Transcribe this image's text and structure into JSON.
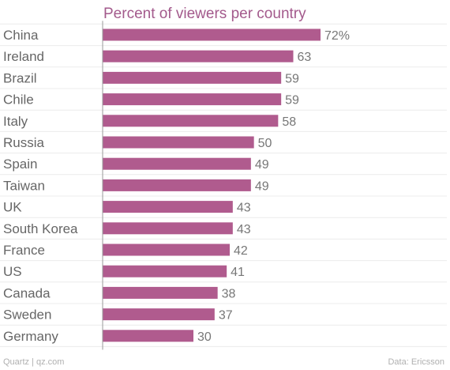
{
  "chart_data": {
    "type": "bar",
    "orientation": "horizontal",
    "subtitle": "Percent of viewers per country",
    "categories": [
      "China",
      "Ireland",
      "Brazil",
      "Chile",
      "Italy",
      "Russia",
      "Spain",
      "Taiwan",
      "UK",
      "South Korea",
      "France",
      "US",
      "Canada",
      "Sweden",
      "Germany"
    ],
    "values": [
      72,
      63,
      59,
      59,
      58,
      50,
      49,
      49,
      43,
      43,
      42,
      41,
      38,
      37,
      30
    ],
    "value_labels": [
      "72%",
      "63",
      "59",
      "59",
      "58",
      "50",
      "49",
      "49",
      "43",
      "43",
      "42",
      "41",
      "38",
      "37",
      "30"
    ],
    "xlim": [
      0,
      72
    ],
    "grid": true,
    "legend": "none",
    "colors": {
      "bar": "#b05b8e",
      "subtitle": "#a35a8c",
      "label": "#666666",
      "value": "#777777",
      "grid": "#ececec",
      "axis": "#999999"
    }
  },
  "footer": {
    "source_left": "Quartz | qz.com",
    "source_right": "Data: Ericsson"
  }
}
